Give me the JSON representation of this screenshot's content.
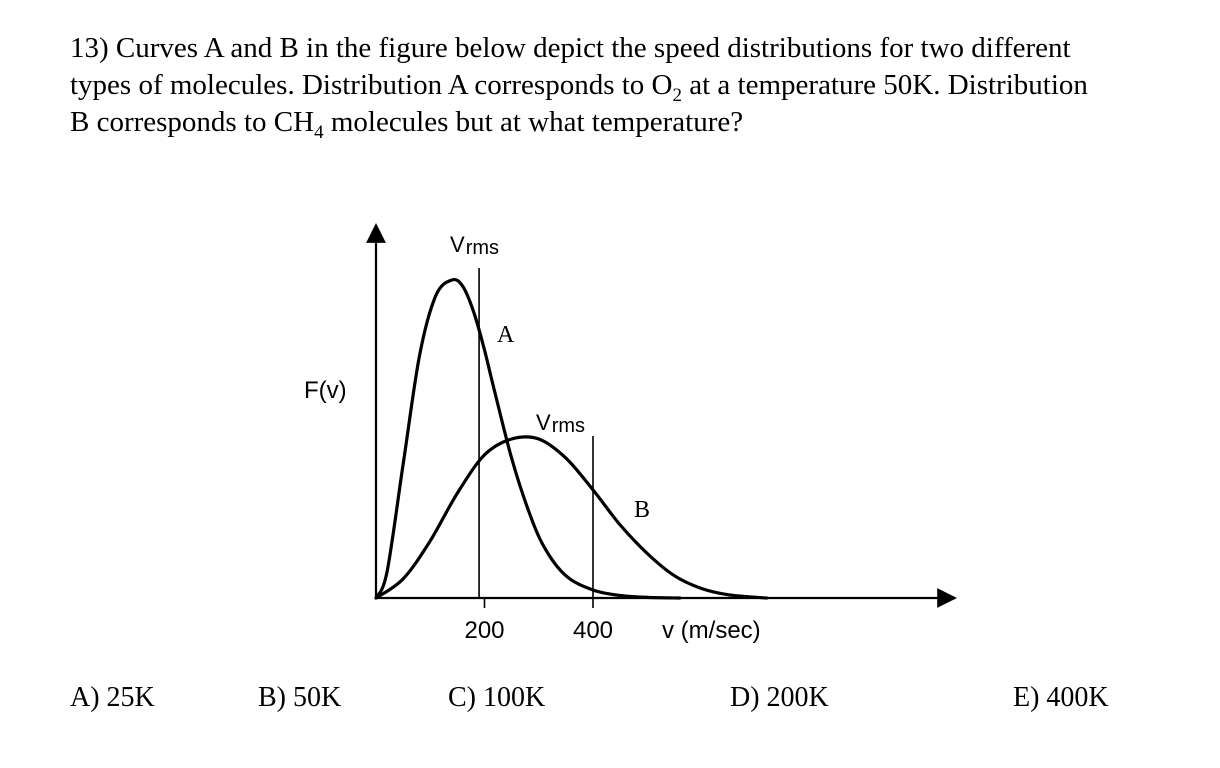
{
  "question": {
    "number": "13)",
    "line1": "Curves A and B in the figure below depict the speed distributions for two different",
    "line2_a": "types of molecules. Distribution A corresponds to O",
    "line2_sub": "2",
    "line2_b": " at a temperature 50K. Distribution",
    "line3_a": "B corresponds to CH",
    "line3_sub": "4",
    "line3_b": " molecules but at what temperature?"
  },
  "chart_data": {
    "type": "line",
    "ylabel": "F(v)",
    "xlabel": "v (m/sec)",
    "x_ticks": [
      "200",
      "400"
    ],
    "x_tick_values": [
      200,
      400
    ],
    "xlim": [
      0,
      720
    ],
    "series": [
      {
        "name": "A",
        "x": [
          0,
          20,
          50,
          80,
          110,
          140,
          160,
          180,
          200,
          220,
          250,
          280,
          310,
          350,
          400,
          450,
          500,
          560
        ],
        "y": [
          0,
          0.08,
          0.42,
          0.76,
          0.95,
          1.0,
          0.98,
          0.9,
          0.78,
          0.64,
          0.44,
          0.28,
          0.16,
          0.07,
          0.025,
          0.008,
          0.002,
          0
        ],
        "vrms": 190
      },
      {
        "name": "B",
        "x": [
          0,
          50,
          100,
          150,
          200,
          250,
          300,
          350,
          400,
          450,
          500,
          550,
          600,
          650,
          720
        ],
        "y": [
          0,
          0.06,
          0.18,
          0.33,
          0.45,
          0.5,
          0.5,
          0.44,
          0.34,
          0.23,
          0.14,
          0.07,
          0.03,
          0.01,
          0
        ],
        "vrms": 400
      }
    ],
    "annotations": {
      "vrms_label_prefix": "V",
      "vrms_label_sub": "rms",
      "curve_label_a": "A",
      "curve_label_b": "B"
    }
  },
  "choices": [
    {
      "label": "A) 25K"
    },
    {
      "label": "B) 50K"
    },
    {
      "label": "C) 100K"
    },
    {
      "label": "D) 200K"
    },
    {
      "label": "E) 400K"
    }
  ]
}
